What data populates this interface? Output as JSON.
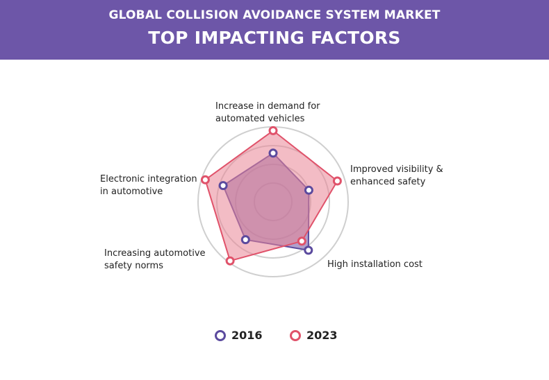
{
  "header": {
    "subtitle": "GLOBAL COLLISION AVOIDANCE SYSTEM MARKET",
    "title": "TOP IMPACTING FACTORS"
  },
  "chart_data": {
    "type": "radar",
    "title": "TOP IMPACTING FACTORS",
    "categories": [
      "Increase in demand for\nautomated vehicles",
      "Improved visibility &\nenhanced safety",
      "High installation cost",
      "Increasing automotive\nsafety norms",
      "Electronic integration\nin automotive"
    ],
    "rlim": [
      0,
      4
    ],
    "grid_rings": 4,
    "series": [
      {
        "name": "2016",
        "values": [
          2.6,
          2.0,
          3.2,
          2.5,
          2.8
        ],
        "color": "#5b4a9e",
        "fill": "#7b5fa8"
      },
      {
        "name": "2023",
        "values": [
          3.8,
          3.6,
          2.6,
          3.9,
          3.8
        ],
        "color": "#e0526a",
        "fill": "#e98595"
      }
    ],
    "grid": true,
    "legend": "bottom-center"
  }
}
